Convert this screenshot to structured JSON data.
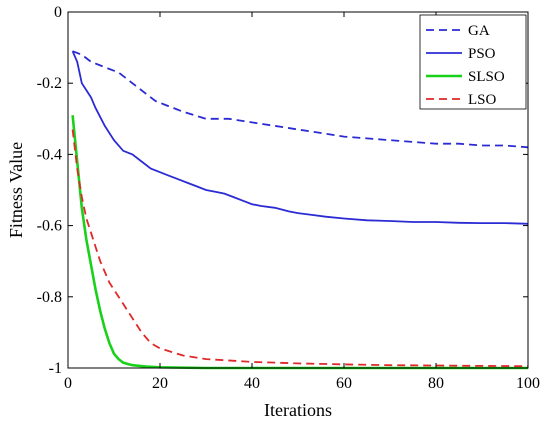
{
  "chart_data": {
    "type": "line",
    "xlabel": "Iterations",
    "ylabel": "Fitness Value",
    "xlim": [
      0,
      100
    ],
    "ylim": [
      -1,
      0
    ],
    "xticks": [
      0,
      20,
      40,
      60,
      80,
      100
    ],
    "yticks": [
      0,
      -0.2,
      -0.4,
      -0.6,
      -0.8,
      -1
    ],
    "xtick_labels": [
      "0",
      "20",
      "40",
      "60",
      "80",
      "100"
    ],
    "ytick_labels": [
      "0",
      "-0.2",
      "-0.4",
      "-0.6",
      "-0.8",
      "-1"
    ],
    "grid": false,
    "legend_position": "top-right",
    "series": [
      {
        "name": "GA",
        "color": "#2b2bd4",
        "style": "dashed",
        "x": [
          1,
          3,
          5,
          7,
          9,
          11,
          13,
          15,
          17,
          19,
          21,
          25,
          30,
          35,
          40,
          45,
          50,
          55,
          60,
          65,
          70,
          75,
          80,
          85,
          90,
          95,
          100
        ],
        "y": [
          -0.11,
          -0.12,
          -0.14,
          -0.15,
          -0.16,
          -0.17,
          -0.19,
          -0.21,
          -0.23,
          -0.25,
          -0.26,
          -0.28,
          -0.3,
          -0.3,
          -0.31,
          -0.32,
          -0.33,
          -0.34,
          -0.35,
          -0.355,
          -0.36,
          -0.365,
          -0.37,
          -0.37,
          -0.375,
          -0.375,
          -0.38
        ]
      },
      {
        "name": "PSO",
        "color": "#2b2bd4",
        "style": "solid",
        "x": [
          1,
          2,
          3,
          4,
          5,
          6,
          8,
          10,
          12,
          14,
          16,
          18,
          20,
          22,
          24,
          26,
          28,
          30,
          32,
          34,
          36,
          38,
          40,
          42,
          45,
          48,
          50,
          53,
          56,
          60,
          65,
          70,
          75,
          80,
          85,
          90,
          95,
          100
        ],
        "y": [
          -0.11,
          -0.14,
          -0.2,
          -0.22,
          -0.24,
          -0.27,
          -0.32,
          -0.36,
          -0.39,
          -0.4,
          -0.42,
          -0.44,
          -0.45,
          -0.46,
          -0.47,
          -0.48,
          -0.49,
          -0.5,
          -0.505,
          -0.51,
          -0.52,
          -0.53,
          -0.54,
          -0.545,
          -0.55,
          -0.56,
          -0.565,
          -0.57,
          -0.575,
          -0.58,
          -0.585,
          -0.587,
          -0.59,
          -0.59,
          -0.592,
          -0.593,
          -0.593,
          -0.595
        ]
      },
      {
        "name": "SLSO",
        "color": "#1ad11a",
        "style": "solid",
        "x": [
          1,
          2,
          3,
          4,
          5,
          6,
          7,
          8,
          9,
          10,
          11,
          12,
          14,
          17,
          20,
          30,
          40,
          50,
          60,
          70,
          80,
          90,
          100
        ],
        "y": [
          -0.29,
          -0.42,
          -0.55,
          -0.64,
          -0.71,
          -0.78,
          -0.84,
          -0.89,
          -0.93,
          -0.96,
          -0.975,
          -0.985,
          -0.992,
          -0.996,
          -0.998,
          -1,
          -1,
          -1,
          -1,
          -1,
          -1,
          -1,
          -1
        ]
      },
      {
        "name": "LSO",
        "color": "#e02828",
        "style": "dashed",
        "x": [
          1,
          2,
          3,
          4,
          5,
          6,
          7,
          8,
          9,
          10,
          12,
          14,
          16,
          18,
          20,
          25,
          30,
          40,
          50,
          60,
          70,
          80,
          90,
          100
        ],
        "y": [
          -0.33,
          -0.44,
          -0.52,
          -0.58,
          -0.62,
          -0.66,
          -0.7,
          -0.73,
          -0.76,
          -0.78,
          -0.82,
          -0.86,
          -0.9,
          -0.93,
          -0.945,
          -0.965,
          -0.975,
          -0.983,
          -0.987,
          -0.99,
          -0.992,
          -0.993,
          -0.994,
          -0.995
        ]
      }
    ]
  }
}
